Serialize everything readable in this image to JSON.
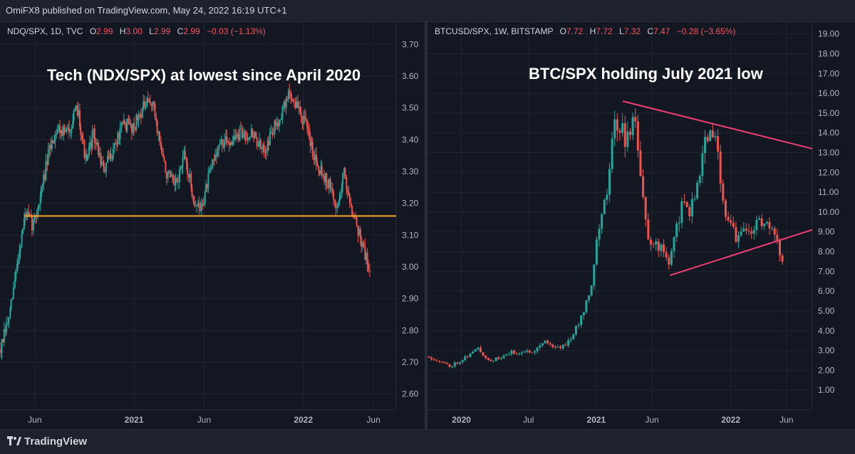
{
  "header": {
    "published_text": "OmiFX8 published on TradingView.com, May 24, 2022 16:19 UTC+1"
  },
  "footer": {
    "brand": "TradingView"
  },
  "colors": {
    "up": "#26a69a",
    "down": "#ef5350",
    "support": "#f5a623",
    "trendline": "#f23d72",
    "grid": "#1f2433",
    "bg": "#131722"
  },
  "chart_data": [
    {
      "type": "candlestick",
      "symbol": "NDQ/SPX, 1D, TVC",
      "ohlc": {
        "o": "2.99",
        "h": "3.00",
        "l": "2.99",
        "c": "2.99"
      },
      "change": "−0.03 (−1.13%)",
      "annotation": "Tech (NDX/SPX) at lowest since April 2020",
      "y_ticks": [
        "3.70",
        "3.60",
        "3.50",
        "3.40",
        "3.30",
        "3.20",
        "3.10",
        "3.00",
        "2.90",
        "2.80",
        "2.70",
        "2.60"
      ],
      "x_ticks": [
        "Jun",
        "2021",
        "Jun",
        "2022",
        "Jun"
      ],
      "ylim": [
        2.55,
        3.77
      ],
      "x_range": [
        "2020-03-18",
        "2022-07-20"
      ],
      "x_tick_dates": [
        "2020-06-01",
        "2021-01-01",
        "2021-06-01",
        "2022-01-01",
        "2022-06-01"
      ],
      "support_level": 3.16,
      "support_start": "2020-05-10",
      "path": [
        [
          "2020-03-20",
          2.74
        ],
        [
          "2020-04-10",
          2.86
        ],
        [
          "2020-04-25",
          3.02
        ],
        [
          "2020-05-12",
          3.17
        ],
        [
          "2020-05-28",
          3.13
        ],
        [
          "2020-06-10",
          3.2
        ],
        [
          "2020-07-05",
          3.38
        ],
        [
          "2020-07-20",
          3.44
        ],
        [
          "2020-08-10",
          3.42
        ],
        [
          "2020-09-02",
          3.5
        ],
        [
          "2020-09-20",
          3.32
        ],
        [
          "2020-10-05",
          3.42
        ],
        [
          "2020-10-28",
          3.3
        ],
        [
          "2020-11-20",
          3.38
        ],
        [
          "2020-12-10",
          3.45
        ],
        [
          "2020-12-31",
          3.44
        ],
        [
          "2021-01-20",
          3.5
        ],
        [
          "2021-02-10",
          3.52
        ],
        [
          "2021-02-25",
          3.4
        ],
        [
          "2021-03-10",
          3.3
        ],
        [
          "2021-03-31",
          3.25
        ],
        [
          "2021-04-20",
          3.35
        ],
        [
          "2021-05-12",
          3.2
        ],
        [
          "2021-05-25",
          3.18
        ],
        [
          "2021-06-15",
          3.3
        ],
        [
          "2021-07-01",
          3.38
        ],
        [
          "2021-07-30",
          3.4
        ],
        [
          "2021-08-25",
          3.42
        ],
        [
          "2021-09-15",
          3.42
        ],
        [
          "2021-10-05",
          3.36
        ],
        [
          "2021-10-25",
          3.42
        ],
        [
          "2021-11-20",
          3.5
        ],
        [
          "2021-12-01",
          3.55
        ],
        [
          "2021-12-20",
          3.5
        ],
        [
          "2022-01-05",
          3.45
        ],
        [
          "2022-01-25",
          3.35
        ],
        [
          "2022-02-10",
          3.3
        ],
        [
          "2022-02-28",
          3.25
        ],
        [
          "2022-03-15",
          3.18
        ],
        [
          "2022-03-29",
          3.3
        ],
        [
          "2022-04-10",
          3.22
        ],
        [
          "2022-04-25",
          3.14
        ],
        [
          "2022-05-10",
          3.06
        ],
        [
          "2022-05-24",
          2.99
        ]
      ]
    },
    {
      "type": "candlestick",
      "symbol": "BTCUSD/SPX, 1W, BITSTAMP",
      "ohlc": {
        "o": "7.72",
        "h": "7.72",
        "l": "7.32",
        "c": "7.47"
      },
      "change": "−0.28 (−3.65%)",
      "annotation": "BTC/SPX holding July 2021 low",
      "y_ticks": [
        "19.00",
        "18.00",
        "17.00",
        "16.00",
        "15.00",
        "14.00",
        "13.00",
        "12.00",
        "11.00",
        "10.00",
        "9.00",
        "8.00",
        "7.00",
        "6.00",
        "5.00",
        "4.00",
        "3.00",
        "2.00",
        "1.00"
      ],
      "x_ticks": [
        "2020",
        "Jul",
        "2021",
        "Jun",
        "2022",
        "Jun"
      ],
      "ylim": [
        0.0,
        19.6
      ],
      "x_range": [
        "2019-10-01",
        "2022-08-10"
      ],
      "x_tick_dates": [
        "2020-01-01",
        "2020-07-01",
        "2021-01-01",
        "2021-06-01",
        "2022-01-01",
        "2022-06-01"
      ],
      "upper_trendline": [
        [
          "2021-03-14",
          15.6
        ],
        [
          "2022-08-10",
          13.2
        ]
      ],
      "lower_trendline": [
        [
          "2021-07-20",
          6.8
        ],
        [
          "2022-08-10",
          9.1
        ]
      ],
      "path": [
        [
          "2019-10-05",
          2.7
        ],
        [
          "2019-12-01",
          2.2
        ],
        [
          "2020-01-15",
          2.7
        ],
        [
          "2020-02-15",
          3.1
        ],
        [
          "2020-03-15",
          2.5
        ],
        [
          "2020-04-15",
          2.6
        ],
        [
          "2020-05-15",
          2.9
        ],
        [
          "2020-06-15",
          2.9
        ],
        [
          "2020-07-15",
          3.0
        ],
        [
          "2020-08-15",
          3.5
        ],
        [
          "2020-09-15",
          3.1
        ],
        [
          "2020-10-15",
          3.4
        ],
        [
          "2020-11-10",
          4.2
        ],
        [
          "2020-11-30",
          5.2
        ],
        [
          "2020-12-20",
          6.5
        ],
        [
          "2021-01-05",
          9.0
        ],
        [
          "2021-01-20",
          10.0
        ],
        [
          "2021-02-05",
          12.0
        ],
        [
          "2021-02-20",
          14.5
        ],
        [
          "2021-03-05",
          14.5
        ],
        [
          "2021-03-25",
          13.5
        ],
        [
          "2021-04-15",
          15.0
        ],
        [
          "2021-05-01",
          12.0
        ],
        [
          "2021-05-20",
          8.5
        ],
        [
          "2021-06-10",
          8.5
        ],
        [
          "2021-06-30",
          8.0
        ],
        [
          "2021-07-20",
          7.5
        ],
        [
          "2021-08-10",
          9.5
        ],
        [
          "2021-08-25",
          10.5
        ],
        [
          "2021-09-10",
          10.0
        ],
        [
          "2021-09-30",
          11.0
        ],
        [
          "2021-10-15",
          13.0
        ],
        [
          "2021-11-01",
          14.0
        ],
        [
          "2021-11-15",
          13.8
        ],
        [
          "2021-11-30",
          12.5
        ],
        [
          "2021-12-15",
          10.0
        ],
        [
          "2022-01-01",
          9.5
        ],
        [
          "2022-01-20",
          8.5
        ],
        [
          "2022-02-05",
          9.0
        ],
        [
          "2022-02-25",
          9.0
        ],
        [
          "2022-03-15",
          9.5
        ],
        [
          "2022-04-01",
          9.5
        ],
        [
          "2022-04-20",
          9.0
        ],
        [
          "2022-05-05",
          8.5
        ],
        [
          "2022-05-15",
          7.8
        ],
        [
          "2022-05-24",
          7.47
        ]
      ]
    }
  ]
}
